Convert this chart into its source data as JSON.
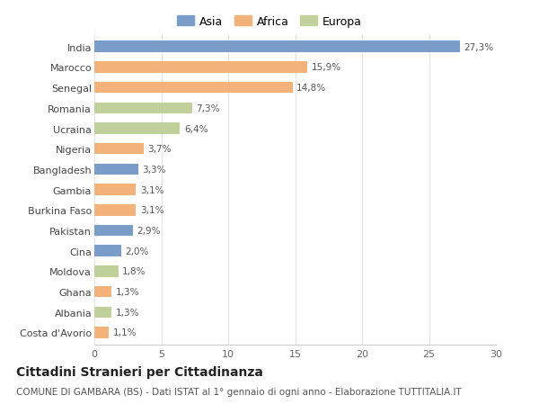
{
  "categories": [
    "India",
    "Marocco",
    "Senegal",
    "Romania",
    "Ucraina",
    "Nigeria",
    "Bangladesh",
    "Gambia",
    "Burkina Faso",
    "Pakistan",
    "Cina",
    "Moldova",
    "Ghana",
    "Albania",
    "Costa d'Avorio"
  ],
  "values": [
    27.3,
    15.9,
    14.8,
    7.3,
    6.4,
    3.7,
    3.3,
    3.1,
    3.1,
    2.9,
    2.0,
    1.8,
    1.3,
    1.3,
    1.1
  ],
  "labels": [
    "27,3%",
    "15,9%",
    "14,8%",
    "7,3%",
    "6,4%",
    "3,7%",
    "3,3%",
    "3,1%",
    "3,1%",
    "2,9%",
    "2,0%",
    "1,8%",
    "1,3%",
    "1,3%",
    "1,1%"
  ],
  "continents": [
    "Asia",
    "Africa",
    "Africa",
    "Europa",
    "Europa",
    "Africa",
    "Asia",
    "Africa",
    "Africa",
    "Asia",
    "Asia",
    "Europa",
    "Africa",
    "Europa",
    "Africa"
  ],
  "colors": {
    "Asia": "#7a9cc8",
    "Africa": "#f2b27a",
    "Europa": "#c0d09a"
  },
  "bg_color": "#ffffff",
  "grid_color": "#e5e5e5",
  "title": "Cittadini Stranieri per Cittadinanza",
  "subtitle": "COMUNE DI GAMBARA (BS) - Dati ISTAT al 1° gennaio di ogni anno - Elaborazione TUTTITALIA.IT",
  "xlim": [
    0,
    30
  ],
  "xticks": [
    0,
    5,
    10,
    15,
    20,
    25,
    30
  ],
  "bar_height": 0.55,
  "label_fontsize": 7.5,
  "tick_fontsize": 8,
  "legend_fontsize": 9,
  "title_fontsize": 10,
  "subtitle_fontsize": 7.5
}
